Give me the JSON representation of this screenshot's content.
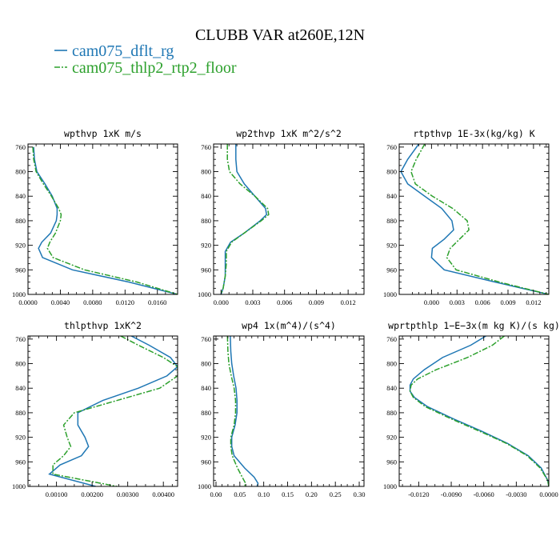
{
  "figure": {
    "title": "CLUBB VAR at260E,12N",
    "legend": [
      {
        "name": "cam075_dflt_rg",
        "color": "#1f77b4",
        "style": "solid"
      },
      {
        "name": "cam075_thlp2_rtp2_floor",
        "color": "#2ca02c",
        "style": "dashdot"
      }
    ]
  },
  "chart_data": [
    {
      "type": "line",
      "title": "wpthvp  1xK m/s",
      "xlim": [
        0,
        0.0185
      ],
      "ylim": [
        1000,
        755
      ],
      "xticks": [
        0,
        0.004,
        0.008,
        0.012,
        0.016
      ],
      "xtick_labels": [
        "0.0000",
        "0.0040",
        "0.0080",
        "0.0120",
        "0.0160"
      ],
      "yticks": [
        760,
        800,
        840,
        880,
        920,
        960,
        1000
      ],
      "ytick_labels": [
        "760",
        "800",
        "840",
        "880",
        "920",
        "960",
        "1000"
      ],
      "y": [
        760,
        780,
        800,
        820,
        840,
        860,
        870,
        880,
        900,
        915,
        925,
        940,
        960,
        980,
        1000
      ],
      "series": [
        {
          "name": "cam075_dflt_rg",
          "values": [
            0.0007,
            0.0008,
            0.0011,
            0.0021,
            0.003,
            0.0036,
            0.0036,
            0.0035,
            0.0028,
            0.0017,
            0.0013,
            0.0018,
            0.0055,
            0.0125,
            0.0185
          ]
        },
        {
          "name": "cam075_thlp2_rtp2_floor",
          "values": [
            0.0006,
            0.0007,
            0.001,
            0.0019,
            0.0029,
            0.0038,
            0.0041,
            0.004,
            0.0034,
            0.0027,
            0.0024,
            0.0031,
            0.007,
            0.0135,
            0.0185
          ]
        }
      ]
    },
    {
      "type": "line",
      "title": "wp2thvp  1xK m^2/s^2",
      "xlim": [
        -0.0007,
        0.0135
      ],
      "ylim": [
        1000,
        755
      ],
      "xticks": [
        0,
        0.003,
        0.006,
        0.009,
        0.012
      ],
      "xtick_labels": [
        "0.000",
        "0.003",
        "0.006",
        "0.009",
        "0.012"
      ],
      "yticks": [
        760,
        800,
        840,
        880,
        920,
        960,
        1000
      ],
      "ytick_labels": [
        "760",
        "800",
        "840",
        "880",
        "920",
        "960",
        "1000"
      ],
      "y": [
        755,
        780,
        800,
        820,
        840,
        860,
        870,
        880,
        900,
        915,
        930,
        950,
        970,
        990,
        1000
      ],
      "series": [
        {
          "name": "cam075_dflt_rg",
          "values": [
            0.0014,
            0.0014,
            0.0015,
            0.0022,
            0.0032,
            0.0042,
            0.0043,
            0.0037,
            0.0022,
            0.0009,
            0.0004,
            0.0004,
            0.0004,
            0.0002,
            0.0
          ]
        },
        {
          "name": "cam075_thlp2_rtp2_floor",
          "values": [
            0.0006,
            0.0006,
            0.0008,
            0.0018,
            0.0032,
            0.0044,
            0.0045,
            0.0038,
            0.0022,
            0.001,
            0.0005,
            0.0005,
            0.0004,
            0.0002,
            0.0
          ]
        }
      ]
    },
    {
      "type": "line",
      "title": "rtpthvp  1E-3x(kg/kg) K",
      "xlim": [
        -0.0038,
        0.0138
      ],
      "ylim": [
        1000,
        755
      ],
      "xticks": [
        0,
        0.003,
        0.006,
        0.009,
        0.012
      ],
      "xtick_labels": [
        "0.000",
        "0.003",
        "0.006",
        "0.009",
        "0.012"
      ],
      "yticks": [
        760,
        800,
        840,
        880,
        920,
        960,
        1000
      ],
      "ytick_labels": [
        "760",
        "800",
        "840",
        "880",
        "920",
        "960",
        "1000"
      ],
      "y": [
        755,
        780,
        800,
        820,
        840,
        860,
        880,
        895,
        910,
        925,
        940,
        960,
        980,
        1000
      ],
      "series": [
        {
          "name": "cam075_dflt_rg",
          "values": [
            -0.0015,
            -0.0028,
            -0.0036,
            -0.0028,
            -0.0008,
            0.0012,
            0.0024,
            0.0026,
            0.0015,
            0.0001,
            0.0,
            0.0015,
            0.0075,
            0.0138
          ]
        },
        {
          "name": "cam075_thlp2_rtp2_floor",
          "values": [
            -0.0008,
            -0.0018,
            -0.0024,
            -0.0019,
            0.0001,
            0.0025,
            0.0042,
            0.0044,
            0.0033,
            0.0022,
            0.0018,
            0.0029,
            0.008,
            0.0138
          ]
        }
      ]
    },
    {
      "type": "line",
      "title": "thlpthvp  1xK^2",
      "xlim": [
        0.0002,
        0.0044
      ],
      "ylim": [
        1000,
        755
      ],
      "xticks": [
        0.001,
        0.002,
        0.003,
        0.004
      ],
      "xtick_labels": [
        "0.00100",
        "0.00200",
        "0.00300",
        "0.00400"
      ],
      "yticks": [
        760,
        800,
        840,
        880,
        920,
        960,
        1000
      ],
      "ytick_labels": [
        "760",
        "800",
        "840",
        "880",
        "920",
        "960",
        "1000"
      ],
      "y": [
        755,
        770,
        790,
        805,
        820,
        840,
        860,
        880,
        900,
        920,
        935,
        950,
        965,
        980,
        1000
      ],
      "series": [
        {
          "name": "cam075_dflt_rg",
          "values": [
            0.0031,
            0.0036,
            0.0042,
            0.0044,
            0.0041,
            0.0033,
            0.0023,
            0.0016,
            0.0016,
            0.0018,
            0.0019,
            0.0017,
            0.0011,
            0.0008,
            0.0021
          ]
        },
        {
          "name": "cam075_thlp2_rtp2_floor",
          "values": [
            0.0028,
            0.0033,
            0.004,
            0.0044,
            0.0044,
            0.0039,
            0.0027,
            0.0015,
            0.0012,
            0.0013,
            0.0014,
            0.0012,
            0.0009,
            0.0009,
            0.0027
          ]
        }
      ]
    },
    {
      "type": "line",
      "title": "wp4  1x(m^4)/(s^4)",
      "xlim": [
        -0.005,
        0.31
      ],
      "ylim": [
        1000,
        755
      ],
      "xticks": [
        0,
        0.05,
        0.1,
        0.15,
        0.2,
        0.25,
        0.3
      ],
      "xtick_labels": [
        "0.00",
        "0.05",
        "0.10",
        "0.15",
        "0.20",
        "0.25",
        "0.30"
      ],
      "yticks": [
        760,
        800,
        840,
        880,
        920,
        960,
        1000
      ],
      "ytick_labels": [
        "760",
        "800",
        "840",
        "880",
        "920",
        "960",
        "1000"
      ],
      "y": [
        755,
        780,
        800,
        820,
        840,
        860,
        880,
        900,
        920,
        935,
        950,
        970,
        985,
        995,
        1000
      ],
      "series": [
        {
          "name": "cam075_dflt_rg",
          "values": [
            0.03,
            0.031,
            0.033,
            0.037,
            0.042,
            0.044,
            0.044,
            0.04,
            0.033,
            0.033,
            0.038,
            0.06,
            0.08,
            0.088,
            0.086
          ]
        },
        {
          "name": "cam075_thlp2_rtp2_floor",
          "values": [
            0.024,
            0.025,
            0.027,
            0.032,
            0.038,
            0.041,
            0.041,
            0.038,
            0.031,
            0.031,
            0.034,
            0.045,
            0.055,
            0.062,
            0.06
          ]
        }
      ]
    },
    {
      "type": "line",
      "title": "wprtpthlp  1−E−3x(m kg K)/(s kg)",
      "xlim": [
        -0.0138,
        0.0
      ],
      "ylim": [
        1000,
        755
      ],
      "xticks": [
        -0.012,
        -0.009,
        -0.006,
        -0.003,
        0.0
      ],
      "xtick_labels": [
        "-0.0120",
        "-0.0090",
        "-0.0060",
        "-0.0030",
        "0.0000"
      ],
      "yticks": [
        760,
        800,
        840,
        880,
        920,
        960,
        1000
      ],
      "ytick_labels": [
        "760",
        "800",
        "840",
        "880",
        "920",
        "960",
        "1000"
      ],
      "y": [
        755,
        770,
        790,
        810,
        825,
        835,
        845,
        855,
        870,
        890,
        910,
        930,
        950,
        970,
        990,
        1000
      ],
      "series": [
        {
          "name": "cam075_dflt_rg",
          "values": [
            -0.0058,
            -0.0072,
            -0.0098,
            -0.0115,
            -0.0125,
            -0.0128,
            -0.0128,
            -0.0124,
            -0.0112,
            -0.0088,
            -0.0062,
            -0.0038,
            -0.0019,
            -0.0007,
            -0.0001,
            0.0
          ]
        },
        {
          "name": "cam075_thlp2_rtp2_floor",
          "values": [
            -0.0041,
            -0.0052,
            -0.0075,
            -0.0104,
            -0.0121,
            -0.0127,
            -0.0128,
            -0.0125,
            -0.0114,
            -0.009,
            -0.0064,
            -0.0039,
            -0.002,
            -0.0008,
            -0.0001,
            0.0
          ]
        }
      ]
    }
  ]
}
